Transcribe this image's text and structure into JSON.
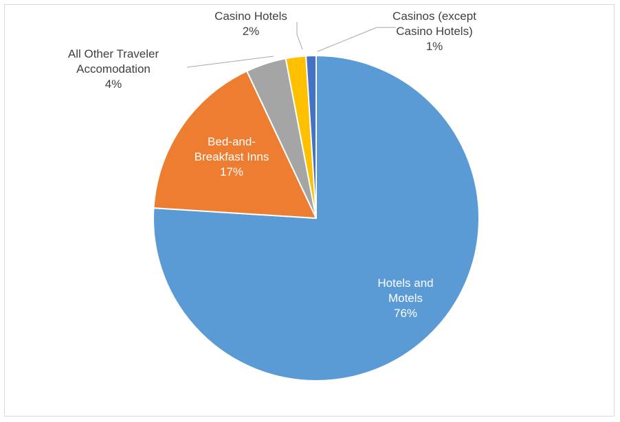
{
  "chart_data": {
    "type": "pie",
    "categories": [
      "Hotels and Motels",
      "Bed-and-Breakfast Inns",
      "All Other Traveler Accomodation",
      "Casino Hotels",
      "Casinos (except Casino Hotels)"
    ],
    "values": [
      76,
      17,
      4,
      2,
      1
    ],
    "value_labels": [
      "76%",
      "17%",
      "4%",
      "2%",
      "1%"
    ],
    "colors": [
      "#5b9bd5",
      "#ed7d31",
      "#a5a5a5",
      "#ffc000",
      "#4472c4"
    ]
  }
}
